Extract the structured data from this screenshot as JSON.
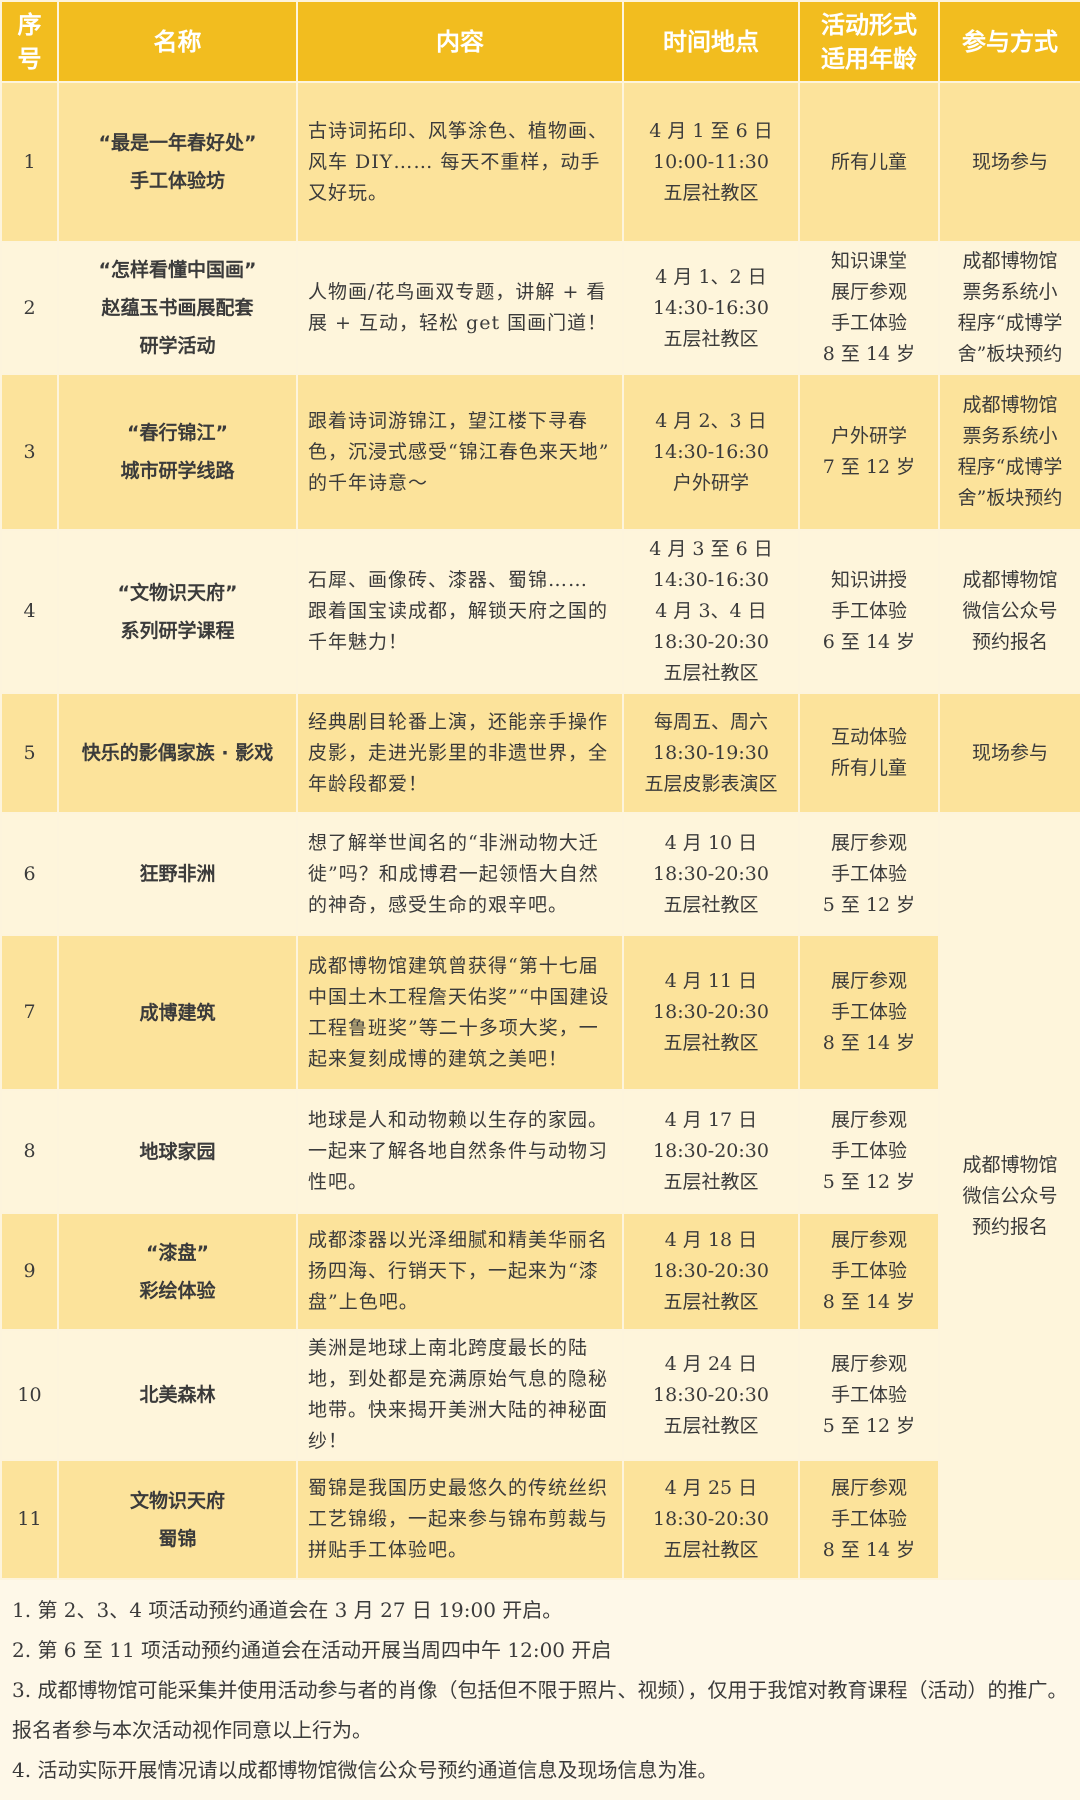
{
  "colors": {
    "header": "#f2bd1f",
    "row_odd": "#fce39b",
    "row_even": "#fef5db",
    "header_text": "#ffffff"
  },
  "headers": [
    "序\n号",
    "名称",
    "内容",
    "时间地点",
    "活动形式\n适用年龄",
    "参与方式"
  ],
  "rows": [
    {
      "no": "1",
      "name": [
        "“最是一年春好处”",
        "手工体验坊"
      ],
      "content": "古诗词拓印、风筝涂色、植物画、风车 DIY…… 每天不重样，动手又好玩。",
      "time": [
        "4 月 1 至 6 日",
        "10:00-11:30",
        "五层社教区"
      ],
      "form": [
        "所有儿童"
      ],
      "join": [
        "现场参与"
      ]
    },
    {
      "no": "2",
      "name": [
        "“怎样看懂中国画”",
        "赵蕴玉书画展配套",
        "研学活动"
      ],
      "content": "人物画/花鸟画双专题，讲解 + 看展 + 互动，轻松 get 国画门道！",
      "time": [
        "4 月 1、2 日",
        "14:30-16:30",
        "五层社教区"
      ],
      "form": [
        "知识课堂",
        "展厅参观",
        "手工体验",
        "8 至 14 岁"
      ],
      "join": [
        "成都博物馆",
        "票务系统小",
        "程序“成博学",
        "舍”板块预约"
      ]
    },
    {
      "no": "3",
      "name": [
        "“春行锦江”",
        "城市研学线路"
      ],
      "content": "跟着诗词游锦江，望江楼下寻春色，沉浸式感受“锦江春色来天地” 的千年诗意～",
      "time": [
        "4 月 2、3 日",
        "14:30-16:30",
        "户外研学"
      ],
      "form": [
        "户外研学",
        "7 至 12 岁"
      ],
      "join": [
        "成都博物馆",
        "票务系统小",
        "程序“成博学",
        "舍”板块预约"
      ]
    },
    {
      "no": "4",
      "name": [
        "“文物识天府”",
        "系列研学课程"
      ],
      "content": "石犀、画像砖、漆器、蜀锦…… 跟着国宝读成都，解锁天府之国的千年魅力！",
      "time": [
        "4 月 3 至 6 日",
        "14:30-16:30",
        "4 月 3、4 日",
        "18:30-20:30",
        "五层社教区"
      ],
      "form": [
        "知识讲授",
        "手工体验",
        "6 至 14 岁"
      ],
      "join": [
        "成都博物馆",
        "微信公众号",
        "预约报名"
      ]
    },
    {
      "no": "5",
      "name": [
        "快乐的影偶家族 · 影戏"
      ],
      "content": "经典剧目轮番上演，还能亲手操作皮影，走进光影里的非遗世界，全年龄段都爱！",
      "time": [
        "每周五、周六",
        "18:30-19:30",
        "五层皮影表演区"
      ],
      "form": [
        "互动体验",
        "所有儿童"
      ],
      "join": [
        "现场参与"
      ]
    },
    {
      "no": "6",
      "name": [
        "狂野非洲"
      ],
      "content": "想了解举世闻名的“非洲动物大迁徙”吗？和成博君一起领悟大自然的神奇，感受生命的艰辛吧。",
      "time": [
        "4 月 10 日",
        "18:30-20:30",
        "五层社教区"
      ],
      "form": [
        "展厅参观",
        "手工体验",
        "5 至 12 岁"
      ]
    },
    {
      "no": "7",
      "name": [
        "成博建筑"
      ],
      "content": "成都博物馆建筑曾获得“第十七届中国土木工程詹天佑奖”“中国建设工程鲁班奖”等二十多项大奖，一起来复刻成博的建筑之美吧！",
      "time": [
        "4 月 11 日",
        "18:30-20:30",
        "五层社教区"
      ],
      "form": [
        "展厅参观",
        "手工体验",
        "8 至 14 岁"
      ]
    },
    {
      "no": "8",
      "name": [
        "地球家园"
      ],
      "content": "地球是人和动物赖以生存的家园。一起来了解各地自然条件与动物习性吧。",
      "time": [
        "4 月 17 日",
        "18:30-20:30",
        "五层社教区"
      ],
      "form": [
        "展厅参观",
        "手工体验",
        "5 至 12 岁"
      ]
    },
    {
      "no": "9",
      "name": [
        "“漆盘”",
        "彩绘体验"
      ],
      "content": "成都漆器以光泽细腻和精美华丽名扬四海、行销天下，一起来为“漆盘”上色吧。",
      "time": [
        "4 月 18 日",
        "18:30-20:30",
        "五层社教区"
      ],
      "form": [
        "展厅参观",
        "手工体验",
        "8 至 14 岁"
      ]
    },
    {
      "no": "10",
      "name": [
        "北美森林"
      ],
      "content": "美洲是地球上南北跨度最长的陆地，到处都是充满原始气息的隐秘地带。快来揭开美洲大陆的神秘面纱！",
      "time": [
        "4 月 24 日",
        "18:30-20:30",
        "五层社教区"
      ],
      "form": [
        "展厅参观",
        "手工体验",
        "5 至 12 岁"
      ]
    },
    {
      "no": "11",
      "name": [
        "文物识天府",
        "蜀锦"
      ],
      "content": "蜀锦是我国历史最悠久的传统丝织工艺锦缎，一起来参与锦布剪裁与拼贴手工体验吧。",
      "time": [
        "4 月 25 日",
        "18:30-20:30",
        "五层社教区"
      ],
      "form": [
        "展厅参观",
        "手工体验",
        "8 至 14 岁"
      ]
    }
  ],
  "merged_join": [
    "成都博物馆",
    "微信公众号",
    "预约报名"
  ],
  "notes": [
    "1. 第 2、3、4 项活动预约通道会在 3 月 27 日 19:00 开启。",
    "2. 第 6 至 11 项活动预约通道会在活动开展当周四中午 12:00 开启",
    "3. 成都博物馆可能采集并使用活动参与者的肖像（包括但不限于照片、视频），仅用于我馆对教育课程（活动）的推广。报名者参与本次活动视作同意以上行为。",
    "4. 活动实际开展情况请以成都博物馆微信公众号预约通道信息及现场信息为准。"
  ]
}
